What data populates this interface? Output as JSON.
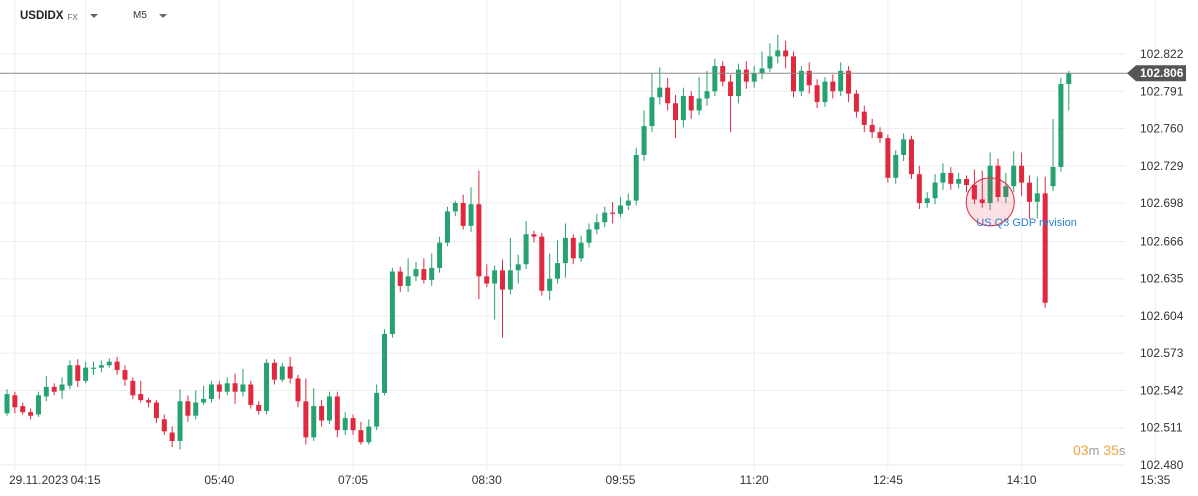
{
  "header": {
    "symbol": "USDIDX",
    "market": "FX",
    "timeframe": "M5"
  },
  "countdown": {
    "minutes": "03",
    "min_unit": "m",
    "seconds": "35",
    "sec_unit": "s"
  },
  "colors": {
    "up": "#26a270",
    "down": "#e0283e",
    "grid": "#eeeeee",
    "price_line": "#8a8a8a",
    "price_tag": "#555555",
    "annotation": "#2a7fd0"
  },
  "chart_data": {
    "type": "candlestick",
    "ylim": [
      102.48,
      102.835
    ],
    "yticks": [
      102.48,
      102.511,
      102.542,
      102.573,
      102.604,
      102.635,
      102.666,
      102.698,
      102.729,
      102.76,
      102.791,
      102.822
    ],
    "ytick_labels": [
      "102.480",
      "102.511",
      "102.542",
      "102.573",
      "102.604",
      "102.635",
      "102.666",
      "102.698",
      "102.729",
      "102.760",
      "102.791",
      "102.822"
    ],
    "xticks": [
      {
        "label": "29.11.2023",
        "index": 1
      },
      {
        "label": "04:15",
        "index": 10
      },
      {
        "label": "05:40",
        "index": 27
      },
      {
        "label": "07:05",
        "index": 44
      },
      {
        "label": "08:30",
        "index": 61
      },
      {
        "label": "09:55",
        "index": 78
      },
      {
        "label": "11:20",
        "index": 95
      },
      {
        "label": "12:45",
        "index": 112
      },
      {
        "label": "14:10",
        "index": 129
      },
      {
        "label": "15:35",
        "index": 146
      }
    ],
    "current_price": 102.806,
    "current_price_label": "102.806",
    "annotation": {
      "text": "US Q3 GDP revision",
      "index": 124,
      "price": 102.699
    },
    "candles": [
      [
        102.523,
        102.539,
        102.521,
        102.543
      ],
      [
        102.538,
        102.528,
        102.523,
        102.541
      ],
      [
        102.529,
        102.524,
        102.522,
        102.532
      ],
      [
        102.524,
        102.521,
        102.518,
        102.527
      ],
      [
        102.522,
        102.538,
        102.52,
        102.541
      ],
      [
        102.537,
        102.545,
        102.533,
        102.554
      ],
      [
        102.545,
        102.541,
        102.538,
        102.548
      ],
      [
        102.542,
        102.547,
        102.535,
        102.553
      ],
      [
        102.546,
        102.563,
        102.543,
        102.567
      ],
      [
        102.563,
        102.55,
        102.545,
        102.568
      ],
      [
        102.55,
        102.561,
        102.548,
        102.566
      ],
      [
        102.56,
        102.561,
        102.555,
        102.566
      ],
      [
        102.561,
        102.563,
        102.557,
        102.567
      ],
      [
        102.563,
        102.566,
        102.561,
        102.569
      ],
      [
        102.566,
        102.559,
        102.555,
        102.57
      ],
      [
        102.559,
        102.551,
        102.546,
        102.563
      ],
      [
        102.55,
        102.538,
        102.535,
        102.553
      ],
      [
        102.539,
        102.534,
        102.532,
        102.55
      ],
      [
        102.534,
        102.532,
        102.528,
        102.536
      ],
      [
        102.532,
        102.519,
        102.515,
        102.534
      ],
      [
        102.518,
        102.508,
        102.505,
        102.522
      ],
      [
        102.507,
        102.5,
        102.495,
        102.512
      ],
      [
        102.5,
        102.533,
        102.493,
        102.543
      ],
      [
        102.533,
        102.521,
        102.516,
        102.538
      ],
      [
        102.521,
        102.532,
        102.518,
        102.542
      ],
      [
        102.532,
        102.535,
        102.53,
        102.546
      ],
      [
        102.535,
        102.547,
        102.532,
        102.55
      ],
      [
        102.547,
        102.541,
        102.535,
        102.55
      ],
      [
        102.541,
        102.548,
        102.538,
        102.553
      ],
      [
        102.548,
        102.541,
        102.531,
        102.556
      ],
      [
        102.541,
        102.547,
        102.537,
        102.56
      ],
      [
        102.547,
        102.53,
        102.527,
        102.55
      ],
      [
        102.53,
        102.525,
        102.522,
        102.533
      ],
      [
        102.525,
        102.565,
        102.522,
        102.568
      ],
      [
        102.565,
        102.551,
        102.547,
        102.568
      ],
      [
        102.551,
        102.562,
        102.549,
        102.565
      ],
      [
        102.562,
        102.552,
        102.548,
        102.57
      ],
      [
        102.552,
        102.533,
        102.528,
        102.555
      ],
      [
        102.533,
        102.503,
        102.497,
        102.552
      ],
      [
        102.503,
        102.529,
        102.5,
        102.544
      ],
      [
        102.529,
        102.517,
        102.512,
        102.534
      ],
      [
        102.517,
        102.537,
        102.514,
        102.541
      ],
      [
        102.537,
        102.509,
        102.503,
        102.541
      ],
      [
        102.509,
        102.519,
        102.505,
        102.524
      ],
      [
        102.519,
        102.509,
        102.505,
        102.522
      ],
      [
        102.509,
        102.499,
        102.497,
        102.516
      ],
      [
        102.499,
        102.512,
        102.497,
        102.518
      ],
      [
        102.512,
        102.54,
        102.509,
        102.547
      ],
      [
        102.54,
        102.589,
        102.538,
        102.593
      ],
      [
        102.589,
        102.641,
        102.586,
        102.644
      ],
      [
        102.641,
        102.629,
        102.624,
        102.645
      ],
      [
        102.629,
        102.637,
        102.624,
        102.652
      ],
      [
        102.637,
        102.643,
        102.633,
        102.649
      ],
      [
        102.643,
        102.634,
        102.631,
        102.652
      ],
      [
        102.634,
        102.644,
        102.629,
        102.656
      ],
      [
        102.644,
        102.665,
        102.64,
        102.67
      ],
      [
        102.665,
        102.691,
        102.662,
        102.695
      ],
      [
        102.691,
        102.698,
        102.687,
        102.7
      ],
      [
        102.698,
        102.679,
        102.676,
        102.705
      ],
      [
        102.679,
        102.697,
        102.674,
        102.711
      ],
      [
        102.697,
        102.637,
        102.618,
        102.725
      ],
      [
        102.637,
        102.631,
        102.628,
        102.647
      ],
      [
        102.631,
        102.642,
        102.601,
        102.646
      ],
      [
        102.642,
        102.626,
        102.586,
        102.651
      ],
      [
        102.626,
        102.642,
        102.622,
        102.669
      ],
      [
        102.642,
        102.647,
        102.631,
        102.655
      ],
      [
        102.647,
        102.672,
        102.643,
        102.683
      ],
      [
        102.672,
        102.67,
        102.665,
        102.675
      ],
      [
        102.67,
        102.625,
        102.621,
        102.673
      ],
      [
        102.625,
        102.635,
        102.617,
        102.656
      ],
      [
        102.635,
        102.648,
        102.631,
        102.667
      ],
      [
        102.648,
        102.669,
        102.636,
        102.681
      ],
      [
        102.669,
        102.652,
        102.647,
        102.672
      ],
      [
        102.652,
        102.665,
        102.649,
        102.671
      ],
      [
        102.665,
        102.676,
        102.661,
        102.681
      ],
      [
        102.676,
        102.682,
        102.672,
        102.689
      ],
      [
        102.682,
        102.69,
        102.678,
        102.695
      ],
      [
        102.69,
        102.689,
        102.681,
        102.699
      ],
      [
        102.689,
        102.696,
        102.686,
        102.703
      ],
      [
        102.696,
        102.7,
        102.692,
        102.706
      ],
      [
        102.7,
        102.738,
        102.696,
        102.744
      ],
      [
        102.738,
        102.762,
        102.733,
        102.775
      ],
      [
        102.762,
        102.786,
        102.757,
        102.806
      ],
      [
        102.786,
        102.794,
        102.78,
        102.811
      ],
      [
        102.794,
        102.781,
        102.775,
        102.802
      ],
      [
        102.781,
        102.767,
        102.752,
        102.788
      ],
      [
        102.767,
        102.787,
        102.761,
        102.794
      ],
      [
        102.787,
        102.775,
        102.768,
        102.791
      ],
      [
        102.775,
        102.785,
        102.771,
        102.803
      ],
      [
        102.785,
        102.791,
        102.779,
        102.808
      ],
      [
        102.791,
        102.812,
        102.787,
        102.818
      ],
      [
        102.812,
        102.799,
        102.795,
        102.816
      ],
      [
        102.799,
        102.787,
        102.757,
        102.805
      ],
      [
        102.787,
        102.809,
        102.781,
        102.814
      ],
      [
        102.809,
        102.799,
        102.793,
        102.816
      ],
      [
        102.799,
        102.806,
        102.794,
        102.812
      ],
      [
        102.806,
        102.81,
        102.801,
        102.824
      ],
      [
        102.81,
        102.82,
        102.807,
        102.831
      ],
      [
        102.82,
        102.825,
        102.814,
        102.838
      ],
      [
        102.825,
        102.82,
        102.81,
        102.833
      ],
      [
        102.82,
        102.791,
        102.786,
        102.824
      ],
      [
        102.791,
        102.808,
        102.787,
        102.812
      ],
      [
        102.808,
        102.796,
        102.789,
        102.815
      ],
      [
        102.796,
        102.782,
        102.777,
        102.801
      ],
      [
        102.782,
        102.799,
        102.778,
        102.803
      ],
      [
        102.799,
        102.791,
        102.785,
        102.805
      ],
      [
        102.791,
        102.808,
        102.787,
        102.815
      ],
      [
        102.808,
        102.789,
        102.782,
        102.812
      ],
      [
        102.789,
        102.774,
        102.769,
        102.792
      ],
      [
        102.774,
        102.763,
        102.757,
        102.779
      ],
      [
        102.763,
        102.757,
        102.752,
        102.768
      ],
      [
        102.757,
        102.752,
        102.748,
        102.761
      ],
      [
        102.752,
        102.719,
        102.715,
        102.755
      ],
      [
        102.719,
        102.738,
        102.714,
        102.742
      ],
      [
        102.738,
        102.751,
        102.733,
        102.756
      ],
      [
        102.751,
        102.722,
        102.718,
        102.754
      ],
      [
        102.722,
        102.698,
        102.693,
        102.729
      ],
      [
        102.698,
        102.702,
        102.694,
        102.707
      ],
      [
        102.702,
        102.715,
        102.697,
        102.722
      ],
      [
        102.715,
        102.723,
        102.709,
        102.731
      ],
      [
        102.723,
        102.714,
        102.709,
        102.728
      ],
      [
        102.714,
        102.718,
        102.71,
        102.723
      ],
      [
        102.718,
        102.713,
        102.707,
        102.721
      ],
      [
        102.713,
        102.701,
        102.697,
        102.726
      ],
      [
        102.701,
        102.698,
        102.694,
        102.725
      ],
      [
        102.698,
        102.729,
        102.692,
        102.74
      ],
      [
        102.729,
        102.703,
        102.699,
        102.735
      ],
      [
        102.703,
        102.712,
        102.698,
        102.723
      ],
      [
        102.712,
        102.729,
        102.707,
        102.741
      ],
      [
        102.729,
        102.715,
        102.704,
        102.74
      ],
      [
        102.715,
        102.699,
        102.685,
        102.721
      ],
      [
        102.699,
        102.706,
        102.685,
        102.72
      ],
      [
        102.706,
        102.615,
        102.611,
        102.72
      ],
      [
        102.712,
        102.728,
        102.708,
        102.768
      ],
      [
        102.728,
        102.797,
        102.724,
        102.802
      ],
      [
        102.797,
        102.806,
        102.775,
        102.808
      ]
    ]
  }
}
